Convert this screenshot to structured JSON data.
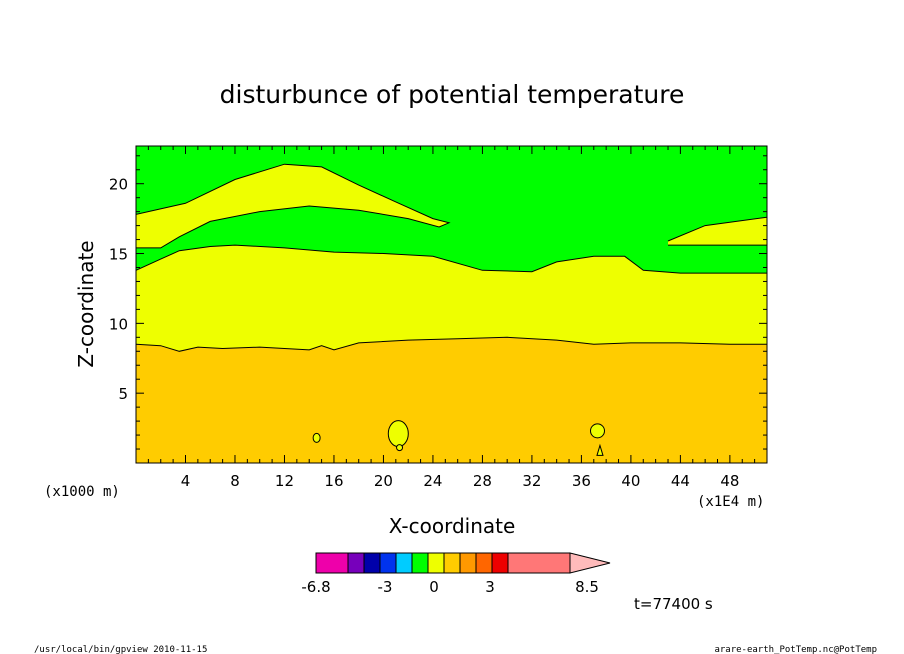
{
  "chart_data": {
    "type": "contour",
    "title": "disturbunce of potential temperature",
    "xlabel": "X-coordinate",
    "ylabel": "Z-coordinate",
    "x_unit_label": "(x1E4 m)",
    "z_unit_label": "(x1000 m)",
    "xlim": [
      0,
      51
    ],
    "ylim": [
      0,
      22.7
    ],
    "x_ticks": [
      "4",
      "8",
      "12",
      "16",
      "20",
      "24",
      "28",
      "32",
      "36",
      "40",
      "44",
      "48"
    ],
    "y_ticks": [
      "5",
      "10",
      "15",
      "20"
    ],
    "levels": [
      {
        "value": -1.5,
        "color": "#00ff00"
      },
      {
        "value": 1.5,
        "color": "#eeff00"
      },
      {
        "value": 4.5,
        "color": "#ffcc00"
      }
    ],
    "regions": [
      {
        "level": -1.5,
        "x": [
          0,
          51
        ],
        "z_bottom": 13.8,
        "z_top": 22.7
      },
      {
        "level": 1.5,
        "x": [
          0,
          51
        ],
        "z_bottom": 8.5,
        "z_top": 15.5
      },
      {
        "level": 4.5,
        "x": [
          0,
          51
        ],
        "z_bottom": 0,
        "z_top": 9.0
      }
    ],
    "contours": {
      "upper_yellow_top": [
        [
          0,
          17.8
        ],
        [
          4,
          18.6
        ],
        [
          8,
          20.3
        ],
        [
          12,
          21.4
        ],
        [
          15,
          21.2
        ],
        [
          18,
          19.9
        ],
        [
          21,
          18.7
        ],
        [
          24,
          17.5
        ],
        [
          25.3,
          17.2
        ],
        [
          24.5,
          16.9
        ],
        [
          22,
          17.5
        ],
        [
          18,
          18.1
        ],
        [
          14,
          18.4
        ],
        [
          10,
          18.0
        ],
        [
          6,
          17.3
        ],
        [
          3.5,
          16.2
        ],
        [
          2,
          15.4
        ],
        [
          0,
          15.4
        ]
      ],
      "yellow_top": [
        [
          0,
          13.8
        ],
        [
          2,
          14.6
        ],
        [
          3.5,
          15.2
        ],
        [
          6,
          15.5
        ],
        [
          8,
          15.6
        ],
        [
          12,
          15.4
        ],
        [
          16,
          15.1
        ],
        [
          20,
          15.0
        ],
        [
          24,
          14.8
        ],
        [
          28,
          13.8
        ],
        [
          32,
          13.7
        ],
        [
          34,
          14.4
        ],
        [
          37,
          14.8
        ],
        [
          39.5,
          14.8
        ],
        [
          41,
          13.8
        ],
        [
          44,
          13.6
        ],
        [
          48,
          13.6
        ],
        [
          51,
          13.6
        ]
      ],
      "right_yellow_lobe": [
        [
          43,
          15.9
        ],
        [
          46,
          17.0
        ],
        [
          51,
          17.6
        ],
        [
          51,
          15.6
        ],
        [
          47,
          15.6
        ],
        [
          43,
          15.6
        ]
      ],
      "orange_top": [
        [
          0,
          8.5
        ],
        [
          2,
          8.4
        ],
        [
          3.5,
          8.0
        ],
        [
          5,
          8.3
        ],
        [
          7,
          8.2
        ],
        [
          10,
          8.3
        ],
        [
          12,
          8.2
        ],
        [
          14,
          8.1
        ],
        [
          15,
          8.4
        ],
        [
          16,
          8.1
        ],
        [
          18,
          8.6
        ],
        [
          22,
          8.8
        ],
        [
          26,
          8.9
        ],
        [
          30,
          9.0
        ],
        [
          34,
          8.8
        ],
        [
          37,
          8.5
        ],
        [
          40,
          8.6
        ],
        [
          44,
          8.6
        ],
        [
          48,
          8.5
        ],
        [
          51,
          8.5
        ]
      ]
    },
    "small_cells": [
      {
        "x": 14.6,
        "z": 1.8,
        "shape": "loop"
      },
      {
        "x": 21.2,
        "z": 2.1,
        "shape": "loop"
      },
      {
        "x": 21.3,
        "z": 1.1,
        "shape": "loop"
      },
      {
        "x": 37.3,
        "z": 2.3,
        "shape": "loop"
      },
      {
        "x": 37.5,
        "z": 0.9,
        "shape": "triangle"
      }
    ],
    "colorbar": {
      "colors": [
        "#ee00aa",
        "#7700bb",
        "#0000aa",
        "#0033ee",
        "#00ccff",
        "#00ff00",
        "#eeff00",
        "#ffcc00",
        "#ff9900",
        "#ff6600",
        "#ee0000",
        "#ff7777",
        "#ffbbbb"
      ],
      "labels": [
        "-6.8",
        "-3",
        "0",
        "3",
        "8.5"
      ]
    }
  },
  "annotations": {
    "time": "t=77400 s",
    "footer_left": "/usr/local/bin/gpview  2010-11-15",
    "footer_right": "arare-earth_PotTemp.nc@PotTemp"
  }
}
